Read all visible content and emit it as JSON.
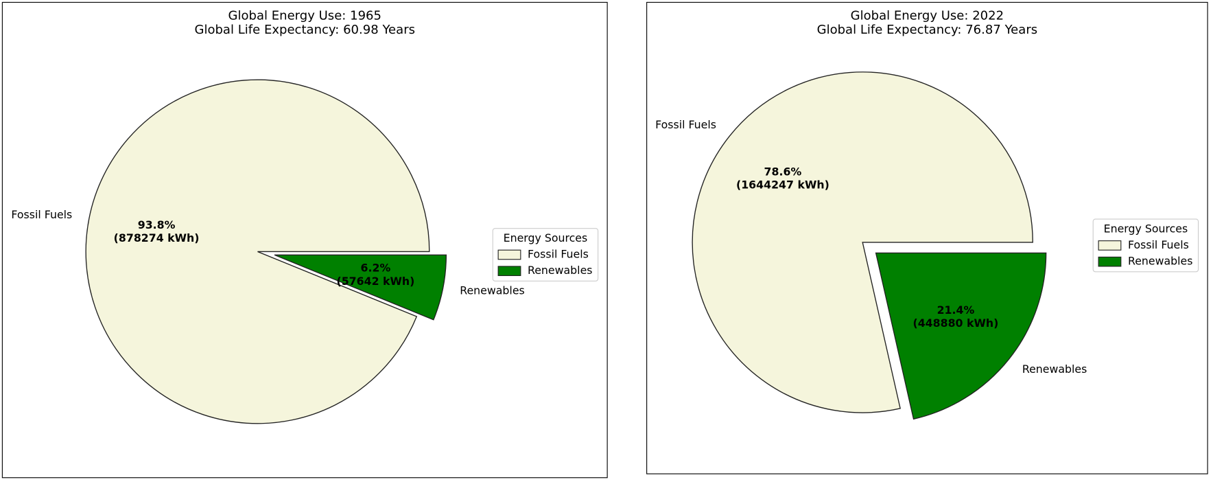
{
  "chart_data": [
    {
      "type": "pie",
      "title": "Global Energy Use: 1965",
      "subtitle": "Global Life Expectancy: 60.98 Years",
      "categories": [
        "Fossil Fuels",
        "Renewables"
      ],
      "values": [
        878274,
        57642
      ],
      "percent_labels": [
        "93.8%",
        "6.2%"
      ],
      "value_labels": [
        "(878274 kWh)",
        "(57642 kWh)"
      ],
      "colors": [
        "#f5f5dc",
        "#008000"
      ],
      "explode": [
        0,
        0.1
      ],
      "legend_title": "Energy Sources",
      "legend": "right"
    },
    {
      "type": "pie",
      "title": "Global Energy Use: 2022",
      "subtitle": "Global Life Expectancy: 76.87 Years",
      "categories": [
        "Fossil Fuels",
        "Renewables"
      ],
      "values": [
        1644247,
        448880
      ],
      "percent_labels": [
        "78.6%",
        "21.4%"
      ],
      "value_labels": [
        "(1644247 kWh)",
        "(448880 kWh)"
      ],
      "colors": [
        "#f5f5dc",
        "#008000"
      ],
      "explode": [
        0,
        0.1
      ],
      "legend_title": "Energy Sources",
      "legend": "right"
    }
  ]
}
